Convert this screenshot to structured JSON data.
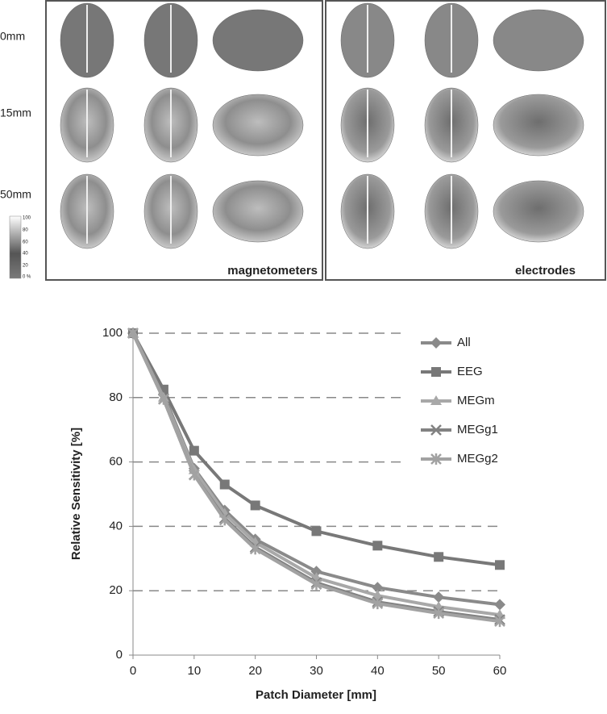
{
  "figure_panels": {
    "rows": [
      "0mm",
      "15mm",
      "50mm"
    ],
    "left_label": "magnetometers",
    "right_label": "electrodes",
    "colorbar": [
      "100",
      "80",
      "60",
      "40",
      "20",
      "0 %"
    ]
  },
  "chart_data": {
    "type": "line",
    "x_label": "Patch Diameter [mm]",
    "y_label": "Relative Sensitivity [%]",
    "x": [
      0,
      5,
      10,
      15,
      20,
      30,
      40,
      50,
      60
    ],
    "series": [
      {
        "name": "All",
        "color": "#8a8a8a",
        "marker": "diamond",
        "values": [
          100,
          81,
          58,
          45,
          36,
          26,
          21,
          18,
          15.7
        ]
      },
      {
        "name": "EEG",
        "color": "#787878",
        "marker": "square",
        "values": [
          100,
          82.5,
          63.5,
          53,
          46.5,
          38.5,
          34,
          30.5,
          28
        ]
      },
      {
        "name": "MEGm",
        "color": "#a8a8a8",
        "marker": "triangle",
        "values": [
          100,
          80,
          57.5,
          44,
          35,
          24,
          18.5,
          15,
          12.5
        ]
      },
      {
        "name": "MEGg1",
        "color": "#828282",
        "marker": "x",
        "values": [
          100,
          79.5,
          56,
          42.5,
          33.5,
          22.5,
          16.5,
          13.5,
          11
        ]
      },
      {
        "name": "MEGg2",
        "color": "#a2a2a2",
        "marker": "star",
        "values": [
          100,
          79.5,
          56,
          42,
          33,
          22,
          16,
          13,
          10.5
        ]
      }
    ],
    "xlim": [
      0,
      60
    ],
    "xticks": [
      0,
      10,
      20,
      30,
      40,
      50,
      60
    ],
    "ylim": [
      0,
      100
    ],
    "yticks": [
      0,
      20,
      40,
      60,
      80,
      100
    ],
    "grid": true,
    "legend": "right"
  }
}
